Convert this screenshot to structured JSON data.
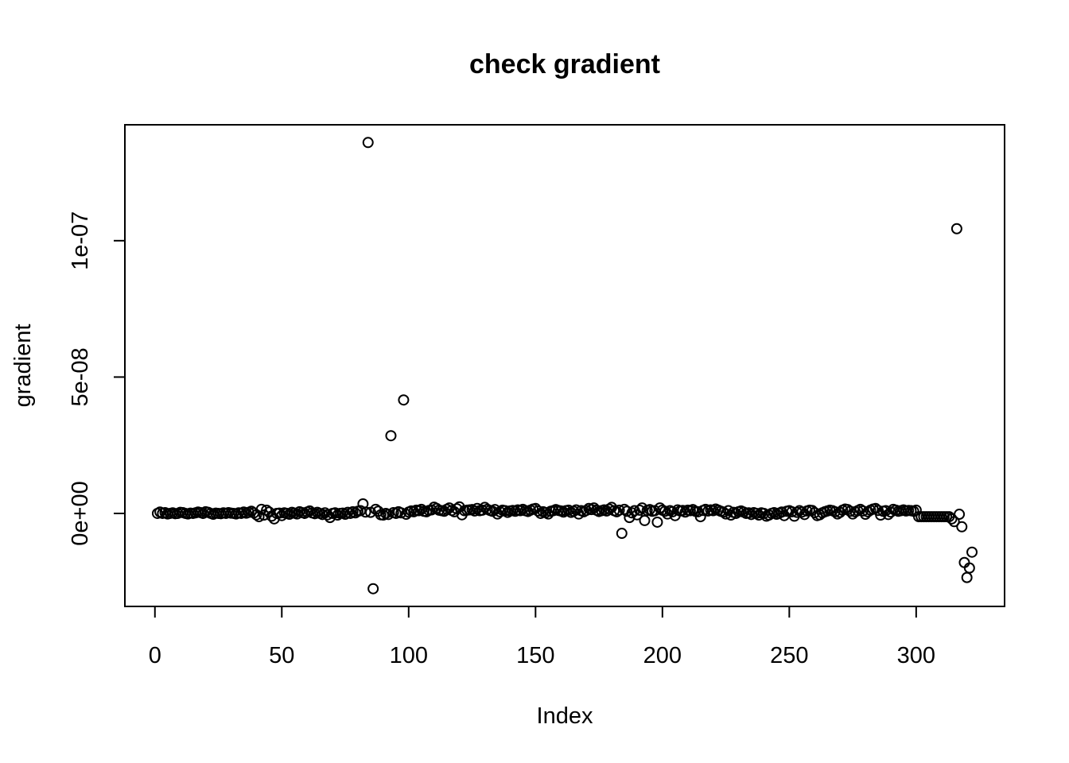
{
  "chart_data": {
    "type": "scatter",
    "title": "check gradient",
    "x_label": "Index",
    "y_label": "gradient",
    "x": [
      1,
      2,
      3,
      4,
      5,
      6,
      7,
      8,
      9,
      10,
      11,
      12,
      13,
      14,
      15,
      16,
      17,
      18,
      19,
      20,
      21,
      22,
      23,
      24,
      25,
      26,
      27,
      28,
      29,
      30,
      31,
      32,
      33,
      34,
      35,
      36,
      37,
      38,
      39,
      40,
      41,
      42,
      43,
      44,
      45,
      46,
      47,
      48,
      49,
      50,
      51,
      52,
      53,
      54,
      55,
      56,
      57,
      58,
      59,
      60,
      61,
      62,
      63,
      64,
      65,
      66,
      67,
      68,
      69,
      70,
      71,
      72,
      73,
      74,
      75,
      76,
      77,
      78,
      79,
      80,
      81,
      82,
      83,
      84,
      85,
      86,
      87,
      88,
      89,
      90,
      91,
      92,
      93,
      94,
      95,
      96,
      97,
      98,
      99,
      100,
      101,
      102,
      103,
      104,
      105,
      106,
      107,
      108,
      109,
      110,
      111,
      112,
      113,
      114,
      115,
      116,
      117,
      118,
      119,
      120,
      121,
      122,
      123,
      124,
      125,
      126,
      127,
      128,
      129,
      130,
      131,
      132,
      133,
      134,
      135,
      136,
      137,
      138,
      139,
      140,
      141,
      142,
      143,
      144,
      145,
      146,
      147,
      148,
      149,
      150,
      151,
      152,
      153,
      154,
      155,
      156,
      157,
      158,
      159,
      160,
      161,
      162,
      163,
      164,
      165,
      166,
      167,
      168,
      169,
      170,
      171,
      172,
      173,
      174,
      175,
      176,
      177,
      178,
      179,
      180,
      181,
      182,
      183,
      184,
      185,
      186,
      187,
      188,
      189,
      190,
      191,
      192,
      193,
      194,
      195,
      196,
      197,
      198,
      199,
      200,
      201,
      202,
      203,
      204,
      205,
      206,
      207,
      208,
      209,
      210,
      211,
      212,
      213,
      214,
      215,
      216,
      217,
      218,
      219,
      220,
      221,
      222,
      223,
      224,
      225,
      226,
      227,
      228,
      229,
      230,
      231,
      232,
      233,
      234,
      235,
      236,
      237,
      238,
      239,
      240,
      241,
      242,
      243,
      244,
      245,
      246,
      247,
      248,
      249,
      250,
      251,
      252,
      253,
      254,
      255,
      256,
      257,
      258,
      259,
      260,
      261,
      262,
      263,
      264,
      265,
      266,
      267,
      268,
      269,
      270,
      271,
      272,
      273,
      274,
      275,
      276,
      277,
      278,
      279,
      280,
      281,
      282,
      283,
      284,
      285,
      286,
      287,
      288,
      289,
      290,
      291,
      292,
      293,
      294,
      295,
      296,
      297,
      298,
      299,
      300,
      301,
      302,
      303,
      304,
      305,
      306,
      307,
      308,
      309,
      310,
      311,
      312,
      313,
      314,
      315,
      316,
      317,
      318,
      319,
      320,
      321,
      322
    ],
    "values": [
      0,
      5e-10,
      0,
      3e-10,
      -2e-10,
      0,
      2e-10,
      -1e-10,
      0,
      4e-10,
      3e-10,
      0,
      -2e-10,
      1e-10,
      0,
      2e-10,
      5e-10,
      3e-10,
      0,
      6e-10,
      4e-10,
      0,
      -3e-10,
      1e-10,
      0,
      -1e-10,
      2e-10,
      0,
      3e-10,
      1e-10,
      0,
      -2e-10,
      2e-10,
      0,
      5e-10,
      1e-10,
      4e-10,
      8e-10,
      2e-10,
      -5e-10,
      -1.2e-09,
      1.5e-09,
      -6e-10,
      1.2e-09,
      5e-10,
      -1e-09,
      -2e-09,
      0,
      1e-10,
      -8e-10,
      2e-10,
      0,
      -3e-10,
      4e-10,
      1e-10,
      -2e-10,
      6e-10,
      3e-10,
      0,
      5e-10,
      9e-10,
      2e-10,
      -1e-10,
      4e-10,
      0,
      -4e-10,
      2e-10,
      -5e-10,
      -1.5e-09,
      0,
      2e-10,
      -6e-10,
      0,
      1e-10,
      -3e-10,
      4e-10,
      0,
      6e-10,
      2e-10,
      8e-10,
      1e-09,
      3.5e-09,
      5e-10,
      1.36e-07,
      4e-10,
      -2.76e-08,
      1.5e-09,
      8e-10,
      -5e-10,
      -6e-10,
      0,
      -4e-10,
      2.85e-08,
      3e-10,
      0,
      6e-10,
      2e-10,
      4.16e-08,
      -3e-10,
      5e-10,
      9e-10,
      6e-10,
      1.2e-09,
      1e-09,
      1.5e-09,
      8e-10,
      6e-10,
      1.1e-09,
      1.3e-09,
      2.3e-09,
      1.8e-09,
      1.2e-09,
      1e-09,
      8e-10,
      1.5e-09,
      2e-09,
      1.1e-09,
      6e-10,
      1.7e-09,
      2.4e-09,
      -5e-10,
      1e-09,
      1.2e-09,
      1.3e-09,
      1.4e-09,
      9e-10,
      1.8e-09,
      1e-09,
      1.2e-09,
      2.2e-09,
      1.5e-09,
      1.1e-09,
      8e-10,
      1.4e-09,
      -2e-10,
      6e-10,
      1.2e-09,
      1e-09,
      4e-10,
      9e-10,
      1.1e-09,
      8e-10,
      1.3e-09,
      1e-09,
      1.5e-09,
      1e-09,
      7e-10,
      1.2e-09,
      1.6e-09,
      1.8e-09,
      9e-10,
      0,
      6e-10,
      3e-10,
      -2e-10,
      8e-10,
      1e-09,
      1.4e-09,
      1.1e-09,
      9e-10,
      5e-10,
      1e-09,
      1.2e-09,
      4e-10,
      8e-10,
      1.3e-09,
      -2e-10,
      1e-09,
      6e-10,
      1.1e-09,
      1.8e-09,
      1.4e-09,
      2e-09,
      1.2e-09,
      7e-10,
      1e-09,
      1.3e-09,
      9e-10,
      1.6e-09,
      2.2e-09,
      1e-09,
      6e-10,
      1.2e-09,
      -7.3e-09,
      1.5e-09,
      8e-10,
      -1.5e-09,
      2e-10,
      1e-09,
      -5e-10,
      1.2e-09,
      2e-09,
      -2.6e-09,
      1.1e-09,
      1.4e-09,
      8e-10,
      1e-09,
      -3.2e-09,
      2e-09,
      1.2e-09,
      8e-10,
      -2e-10,
      1e-09,
      6e-10,
      -8e-10,
      1.3e-09,
      9e-10,
      1.1e-09,
      5e-10,
      1.2e-09,
      1e-09,
      1.4e-09,
      8e-10,
      6e-10,
      -1.2e-09,
      1.1e-09,
      1.5e-09,
      9e-10,
      1.3e-09,
      1e-09,
      1.6e-09,
      1.2e-09,
      8e-10,
      5e-10,
      -2e-10,
      1e-09,
      -6e-10,
      4e-10,
      0,
      6e-10,
      9e-10,
      5e-10,
      0,
      2e-10,
      -4e-10,
      3e-10,
      0,
      -6e-10,
      2e-10,
      0,
      -1e-09,
      -6e-10,
      0,
      3e-10,
      -3e-10,
      1e-10,
      5e-10,
      -8e-10,
      8e-10,
      1e-09,
      6e-10,
      -1e-09,
      4e-10,
      1e-09,
      5e-10,
      -4e-10,
      9e-10,
      1.2e-09,
      1.1e-09,
      3e-10,
      -8e-10,
      -5e-10,
      2e-10,
      6e-10,
      9e-10,
      1.2e-09,
      1e-09,
      6e-10,
      -2e-10,
      4e-10,
      1.2e-09,
      1.6e-09,
      1.4e-09,
      8e-10,
      -2e-10,
      6e-10,
      1e-09,
      1.5e-09,
      9e-10,
      -3e-10,
      6e-10,
      1.2e-09,
      1.6e-09,
      1.8e-09,
      1.1e-09,
      -6e-10,
      8e-10,
      1e-09,
      -4e-10,
      5e-10,
      1.5e-09,
      1.2e-09,
      8e-10,
      1e-09,
      1.3e-09,
      9e-10,
      1.1e-09,
      1e-09,
      8e-10,
      1.2e-09,
      -1.2e-09,
      -1.2e-09,
      -1.2e-09,
      -1.2e-09,
      -1.2e-09,
      -1.2e-09,
      -1.2e-09,
      -1.2e-09,
      -1.2e-09,
      -1.2e-09,
      -1.2e-09,
      -1.2e-09,
      -1.2e-09,
      -2e-09,
      -3e-09,
      1.044e-07,
      -3e-10,
      -4.9e-09,
      -1.8e-08,
      -2.35e-08,
      -2e-08,
      -1.42e-08
    ],
    "color": "#000000",
    "xlim": [
      -11.84,
      334.84
    ],
    "xticks": [
      0,
      50,
      100,
      150,
      200,
      250,
      300
    ],
    "ylim": [
      -3.41e-08,
      1.425e-07
    ],
    "yticks": [
      {
        "value": 0,
        "label": "0e+00"
      },
      {
        "value": 5e-08,
        "label": "5e-08"
      },
      {
        "value": 1e-07,
        "label": "1e-07"
      }
    ]
  }
}
